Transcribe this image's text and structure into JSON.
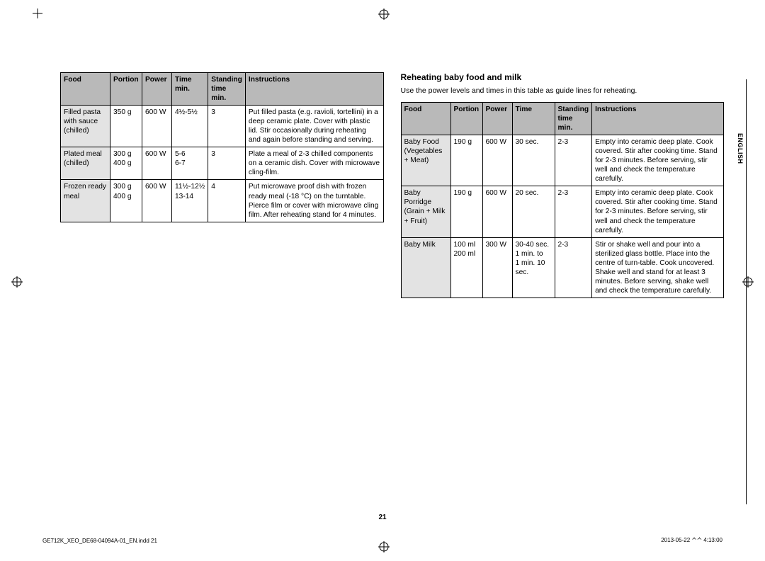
{
  "page_number": "21",
  "footer_left": "GE712K_XEO_DE68-04094A-01_EN.indd   21",
  "footer_right": "2013-05-22   ᄉᄉ 4:13:00",
  "side_label": "ENGLISH",
  "left_table": {
    "headers": [
      "Food",
      "Portion",
      "Power",
      "Time\nmin.",
      "Standing\ntime\nmin.",
      "Instructions"
    ],
    "rows": [
      {
        "food": "Filled pasta with sauce (chilled)",
        "portion": "350 g",
        "power": "600 W",
        "time": "4½-5½",
        "standing": "3",
        "instructions": "Put filled pasta (e.g. ravioli, tortellini) in a deep ceramic plate. Cover with plastic lid. Stir occasionally during reheating and again before standing and serving."
      },
      {
        "food": "Plated meal (chilled)",
        "portion": "300 g\n400 g",
        "power": "600 W",
        "time": "5-6\n6-7",
        "standing": "3",
        "instructions": "Plate a meal of 2-3 chilled components on a ceramic dish. Cover with microwave cling-film."
      },
      {
        "food": "Frozen ready meal",
        "portion": "300 g\n400 g",
        "power": "600 W",
        "time": "11½-12½\n13-14",
        "standing": "4",
        "instructions": "Put microwave proof dish with frozen ready meal (-18 °C) on the turntable. Pierce film or cover with microwave cling film. After reheating stand for 4 minutes."
      }
    ]
  },
  "right_section": {
    "title": "Reheating baby food and milk",
    "lead": "Use the power levels and times in this table as guide lines for reheating.",
    "headers": [
      "Food",
      "Portion",
      "Power",
      "Time",
      "Standing\ntime\nmin.",
      "Instructions"
    ],
    "rows": [
      {
        "food": "Baby Food (Vegetables + Meat)",
        "portion": "190 g",
        "power": "600 W",
        "time": "30 sec.",
        "standing": "2-3",
        "instructions": "Empty into ceramic deep plate. Cook covered. Stir after cooking time. Stand for 2-3 minutes. Before serving, stir well and check the temperature carefully."
      },
      {
        "food": "Baby Porridge (Grain + Milk + Fruit)",
        "portion": "190 g",
        "power": "600 W",
        "time": "20 sec.",
        "standing": "2-3",
        "instructions": "Empty into ceramic deep plate. Cook covered. Stir after cooking time. Stand for 2-3 minutes. Before serving, stir well and check the temperature carefully."
      },
      {
        "food": "Baby Milk",
        "portion": "100 ml\n200 ml",
        "power": "300 W",
        "time": "30-40 sec.\n1 min. to\n1 min. 10 sec.",
        "standing": "2-3",
        "instructions": "Stir or shake well and pour into a sterilized glass bottle. Place into the centre of turn-table. Cook uncovered. Shake well and stand for at least 3 minutes. Before serving, shake well and check the temperature carefully."
      }
    ]
  }
}
